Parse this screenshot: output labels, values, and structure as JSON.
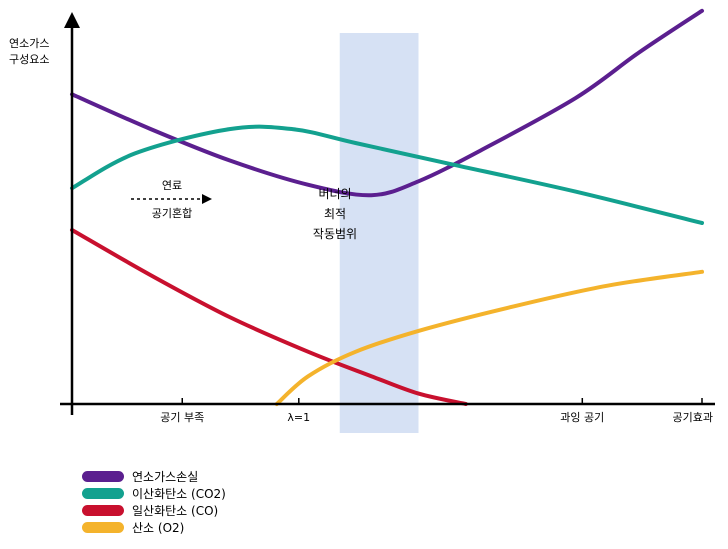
{
  "chart_data": {
    "type": "line",
    "ylabel": [
      "연소가스",
      "구성요소"
    ],
    "x_tick_labels": [
      {
        "label": "공기 부족",
        "x": 0.35
      },
      {
        "label": "λ=1",
        "x": 0.72
      },
      {
        "label": "과잉 공기",
        "x": 1.62
      },
      {
        "label": "공기효과",
        "x": 2.0
      }
    ],
    "optimal_band": {
      "label": [
        "버너의",
        "최적",
        "작동범위"
      ],
      "x_range": [
        0.85,
        1.1
      ],
      "color": "#d6e1f4"
    },
    "arrow_annotation": {
      "top": "연료",
      "bottom": "공기혼합"
    },
    "xlim": [
      0,
      2.0
    ],
    "ylim": [
      0,
      1.0
    ],
    "series": [
      {
        "name": "연소가스손실",
        "color": "#5b1f8f",
        "x": [
          0,
          0.25,
          0.5,
          0.75,
          0.95,
          1.1,
          1.3,
          1.6,
          1.8,
          2.0
        ],
        "y": [
          0.89,
          0.79,
          0.7,
          0.63,
          0.6,
          0.64,
          0.73,
          0.88,
          1.01,
          1.13
        ]
      },
      {
        "name": "이산화탄소 (CO2)",
        "color": "#13a18f",
        "x": [
          0,
          0.2,
          0.5,
          0.7,
          0.9,
          1.2,
          1.6,
          2.0
        ],
        "y": [
          0.62,
          0.72,
          0.79,
          0.79,
          0.75,
          0.69,
          0.61,
          0.52
        ]
      },
      {
        "name": "일산화탄소 (CO)",
        "color": "#c8102e",
        "x": [
          0,
          0.25,
          0.5,
          0.75,
          0.95,
          1.1,
          1.25
        ],
        "y": [
          0.5,
          0.37,
          0.25,
          0.15,
          0.08,
          0.03,
          0.0
        ]
      },
      {
        "name": "산소 (O2)",
        "color": "#f4b32c",
        "x": [
          0.65,
          0.75,
          0.9,
          1.1,
          1.4,
          1.7,
          2.0
        ],
        "y": [
          0.0,
          0.08,
          0.15,
          0.21,
          0.28,
          0.34,
          0.38
        ]
      }
    ]
  }
}
